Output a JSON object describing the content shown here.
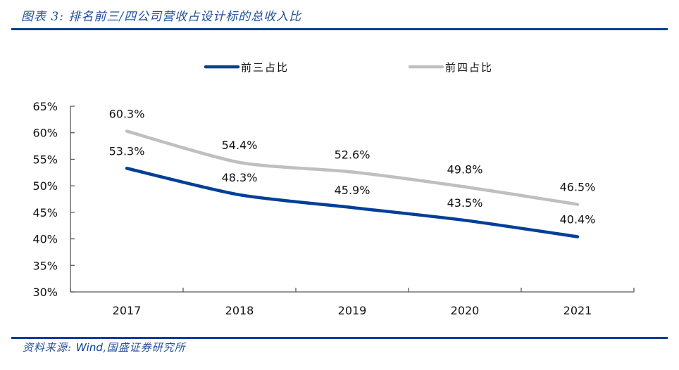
{
  "figure": {
    "title": "图表 3:  排名前三/四公司营收占设计标的总收入比",
    "source_prefix": "资料来源:",
    "source_wind": "Wind",
    "source_suffix": ",国盛证券研究所"
  },
  "colors": {
    "rule": "#003f98",
    "series_top3": "#003f98",
    "series_top4": "#bfbfbf",
    "axis": "#595959"
  },
  "chart_data": {
    "type": "line",
    "title": "排名前三/四公司营收占设计标的总收入比",
    "xlabel": "",
    "ylabel": "",
    "categories": [
      "2017",
      "2018",
      "2019",
      "2020",
      "2021"
    ],
    "ylim": [
      30,
      65
    ],
    "yticks": [
      30,
      35,
      40,
      45,
      50,
      55,
      60,
      65
    ],
    "ytick_labels": [
      "30%",
      "35%",
      "40%",
      "45%",
      "50%",
      "55%",
      "60%",
      "65%"
    ],
    "grid": false,
    "legend_position": "top",
    "series": [
      {
        "name": "前三占比",
        "color": "#003f98",
        "values": [
          53.3,
          48.3,
          45.9,
          43.5,
          40.4
        ],
        "labels": [
          "53.3%",
          "48.3%",
          "45.9%",
          "43.5%",
          "40.4%"
        ]
      },
      {
        "name": "前四占比",
        "color": "#bfbfbf",
        "values": [
          60.3,
          54.4,
          52.6,
          49.8,
          46.5
        ],
        "labels": [
          "60.3%",
          "54.4%",
          "52.6%",
          "49.8%",
          "46.5%"
        ]
      }
    ]
  }
}
